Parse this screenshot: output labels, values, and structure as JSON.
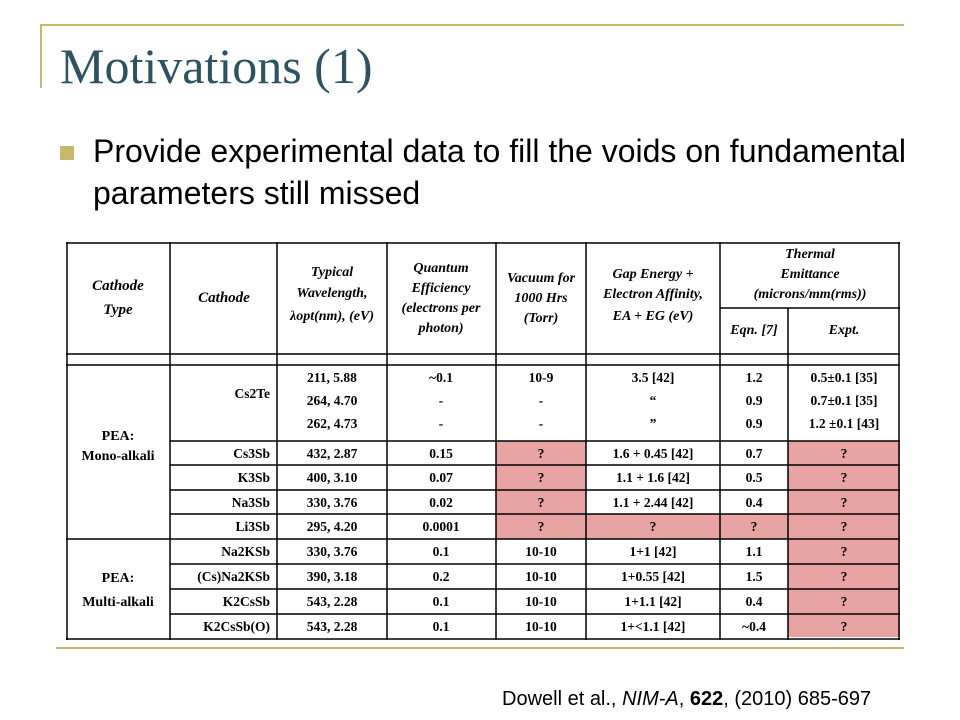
{
  "slide": {
    "title": "Motivations (1)",
    "bullet": "Provide experimental data to fill the voids on fundamental parameters still missed",
    "reference": {
      "authors": "Dowell et al., ",
      "journal": "NIM-A",
      "sep": ", ",
      "volume": "622",
      "rest": ", (2010) 685-697"
    },
    "colors": {
      "title": "#2e5360",
      "accent": "#c8b86a",
      "highlight": "#e8a3a3"
    }
  },
  "table": {
    "headers": {
      "type": [
        "Cathode",
        "Type"
      ],
      "cathode": "Cathode",
      "wavelength": [
        "Typical",
        "Wavelength,",
        "λopt(nm), (eV)"
      ],
      "qe": [
        "Quantum",
        "Efficiency",
        "(electrons per",
        "photon)"
      ],
      "vacuum": [
        "Vacuum for",
        "1000 Hrs",
        "(Torr)"
      ],
      "gap": [
        "Gap Energy +",
        "Electron Affinity,",
        "EA + EG (eV)"
      ],
      "emittance": [
        "Thermal",
        "Emittance",
        "(microns/mm(rms))"
      ],
      "eqn": "Eqn. [7]",
      "expt": "Expt."
    },
    "groups": [
      {
        "label": [
          "PEA:",
          "Mono-alkali"
        ]
      },
      {
        "label": [
          "PEA:",
          "Multi-alkali"
        ]
      }
    ],
    "cs2te": {
      "name": "Cs2Te",
      "wavelength": [
        "211, 5.88",
        "264, 4.70",
        "262, 4.73"
      ],
      "qe": [
        "~0.1",
        "-",
        "-"
      ],
      "vacuum": [
        "10-9",
        "-",
        "-"
      ],
      "gap": [
        "3.5 [42]",
        "“",
        "”"
      ],
      "eqn": [
        "1.2",
        "0.9",
        "0.9"
      ],
      "expt": [
        "0.5±0.1 [35]",
        "0.7±0.1 [35]",
        "1.2 ±0.1 [43]"
      ]
    },
    "rows": [
      {
        "cathode": "Cs3Sb",
        "wavelength": "432, 2.87",
        "qe": "0.15",
        "vacuum": "?",
        "gap": "1.6 + 0.45 [42]",
        "eqn": "0.7",
        "expt": "?"
      },
      {
        "cathode": "K3Sb",
        "wavelength": "400, 3.10",
        "qe": "0.07",
        "vacuum": "?",
        "gap": "1.1 + 1.6 [42]",
        "eqn": "0.5",
        "expt": "?"
      },
      {
        "cathode": "Na3Sb",
        "wavelength": "330, 3.76",
        "qe": "0.02",
        "vacuum": "?",
        "gap": "1.1 + 2.44 [42]",
        "eqn": "0.4",
        "expt": "?"
      },
      {
        "cathode": "Li3Sb",
        "wavelength": "295, 4.20",
        "qe": "0.0001",
        "vacuum": "?",
        "gap": "?",
        "eqn": "?",
        "expt": "?"
      },
      {
        "cathode": "Na2KSb",
        "wavelength": "330, 3.76",
        "qe": "0.1",
        "vacuum": "10-10",
        "gap": "1+1 [42]",
        "eqn": "1.1",
        "expt": "?"
      },
      {
        "cathode": "(Cs)Na2KSb",
        "wavelength": "390, 3.18",
        "qe": "0.2",
        "vacuum": "10-10",
        "gap": "1+0.55 [42]",
        "eqn": "1.5",
        "expt": "?"
      },
      {
        "cathode": "K2CsSb",
        "wavelength": "543, 2.28",
        "qe": "0.1",
        "vacuum": "10-10",
        "gap": "1+1.1 [42]",
        "eqn": "0.4",
        "expt": "?"
      },
      {
        "cathode": "K2CsSb(O)",
        "wavelength": "543, 2.28",
        "qe": "0.1",
        "vacuum": "10-10",
        "gap": "1+<1.1 [42]",
        "eqn": "~0.4",
        "expt": "?"
      }
    ]
  }
}
